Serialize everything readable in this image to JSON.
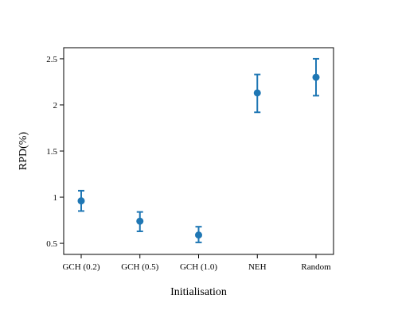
{
  "chart_data": {
    "type": "scatter",
    "xlabel": "Initialisation",
    "ylabel": "RPD(%)",
    "categories": [
      "GCH (0.2)",
      "GCH (0.5)",
      "GCH (1.0)",
      "NEH",
      "Random"
    ],
    "series": [
      {
        "values": [
          0.96,
          0.74,
          0.59,
          2.13,
          2.3
        ],
        "error_low": [
          0.85,
          0.63,
          0.51,
          1.92,
          2.1
        ],
        "error_high": [
          1.07,
          0.84,
          0.68,
          2.33,
          2.5
        ],
        "color": "#1f77b4"
      }
    ],
    "ylim": [
      0.38,
      2.62
    ],
    "yticks": [
      0.5,
      1,
      1.5,
      2,
      2.5
    ],
    "ytick_labels": [
      "0.5",
      "1",
      "1.5",
      "2",
      "2.5"
    ],
    "grid": false,
    "legend": "none"
  }
}
